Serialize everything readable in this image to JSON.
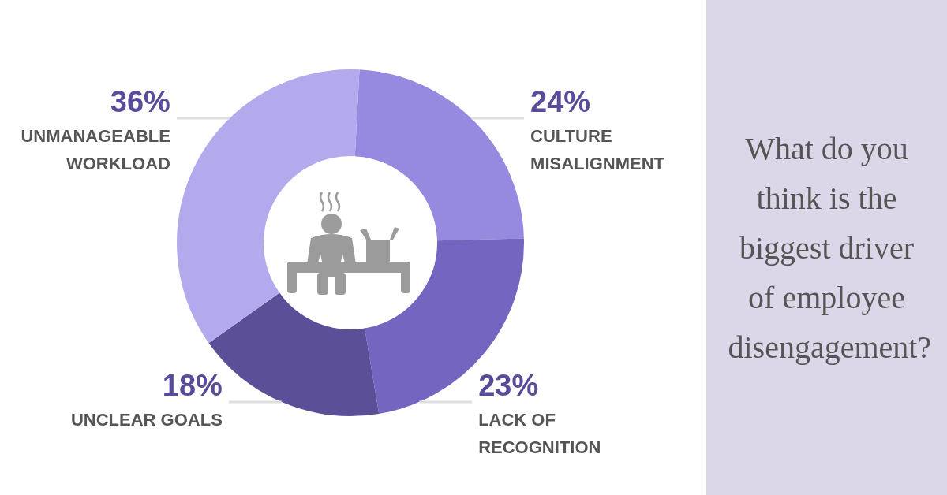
{
  "chart_data": {
    "type": "donut",
    "title": "What do you think is the biggest driver of employee disengagement?",
    "categories": [
      "CULTURE MISALIGNMENT",
      "LACK OF RECOGNITION",
      "UNCLEAR GOALS",
      "UNMANAGEABLE WORKLOAD"
    ],
    "values": [
      24,
      23,
      18,
      36
    ],
    "value_labels": [
      "24%",
      "23%",
      "18%",
      "36%"
    ],
    "colors": [
      "#9589e0",
      "#7466c0",
      "#5b4f97",
      "#b3aaee"
    ]
  }
}
